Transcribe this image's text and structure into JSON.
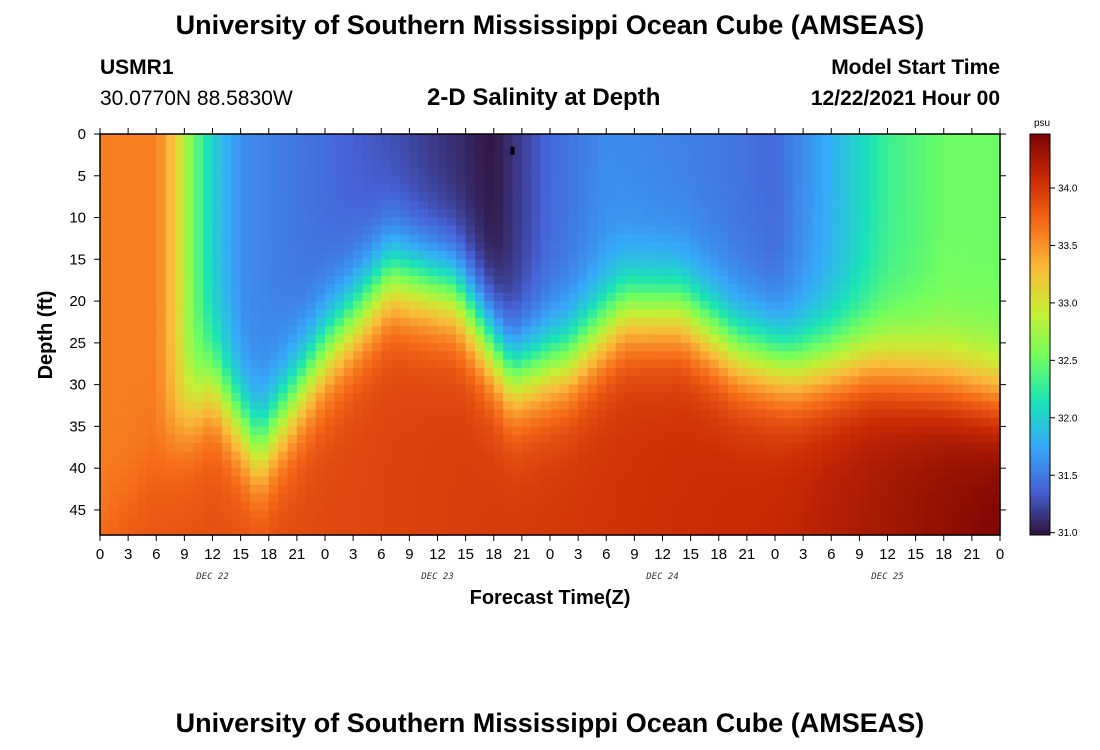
{
  "header": {
    "title": "University of Southern Mississippi Ocean Cube (AMSEAS)",
    "station_id": "USMR1",
    "location": "30.0770N  88.5830W",
    "subtitle": "2-D Salinity at Depth",
    "model_start_label": "Model Start Time",
    "model_start_value": "12/22/2021 Hour 00"
  },
  "footer": {
    "title": "University of Southern Mississippi Ocean Cube (AMSEAS)"
  },
  "colors": {
    "colormap": [
      "#30123b",
      "#4662d7",
      "#36aaf9",
      "#1ae4b6",
      "#72fe5e",
      "#c8ef34",
      "#faba39",
      "#f66b19",
      "#ca2a04",
      "#7a0403"
    ]
  },
  "chart_data": {
    "type": "heatmap",
    "title": "2-D Salinity at Depth",
    "xlabel": "Forecast Time(Z)",
    "ylabel": "Depth (ft)",
    "x_range_hours": [
      0,
      96
    ],
    "x_tick_step_hours": 3,
    "x_tick_labels": [
      "0",
      "3",
      "6",
      "9",
      "12",
      "15",
      "18",
      "21",
      "0",
      "3",
      "6",
      "9",
      "12",
      "15",
      "18",
      "21",
      "0",
      "3",
      "6",
      "9",
      "12",
      "15",
      "18",
      "21",
      "0",
      "3",
      "6",
      "9",
      "12",
      "15",
      "18",
      "21",
      "0"
    ],
    "day_labels": [
      {
        "text": "DEC 22",
        "hour": 12
      },
      {
        "text": "DEC 23",
        "hour": 36
      },
      {
        "text": "DEC 24",
        "hour": 60
      },
      {
        "text": "DEC 25",
        "hour": 84
      }
    ],
    "y_range_ft": [
      0,
      48
    ],
    "y_ticks": [
      0,
      5,
      10,
      15,
      20,
      25,
      30,
      35,
      40,
      45
    ],
    "colorbar": {
      "unit": "psu",
      "range": [
        30.98,
        34.47
      ],
      "ticks": [
        "31.0",
        "31.5",
        "32.0",
        "32.5",
        "33.0",
        "33.5",
        "34.0"
      ]
    },
    "surface_salinity_psu": [
      {
        "hour": 0,
        "value": 33.6
      },
      {
        "hour": 6,
        "value": 33.6
      },
      {
        "hour": 8,
        "value": 33.2
      },
      {
        "hour": 10,
        "value": 32.5
      },
      {
        "hour": 12,
        "value": 32.0
      },
      {
        "hour": 15,
        "value": 31.6
      },
      {
        "hour": 30,
        "value": 31.3
      },
      {
        "hour": 42,
        "value": 31.0
      },
      {
        "hour": 48,
        "value": 31.4
      },
      {
        "hour": 54,
        "value": 31.6
      },
      {
        "hour": 66,
        "value": 31.5
      },
      {
        "hour": 72,
        "value": 31.4
      },
      {
        "hour": 78,
        "value": 31.8
      },
      {
        "hour": 84,
        "value": 32.3
      },
      {
        "hour": 90,
        "value": 32.5
      },
      {
        "hour": 96,
        "value": 32.5
      }
    ],
    "halocline_depth_ft": [
      {
        "hour": 0,
        "value": 48
      },
      {
        "hour": 12,
        "value": 30
      },
      {
        "hour": 17,
        "value": 38
      },
      {
        "hour": 24,
        "value": 26
      },
      {
        "hour": 31,
        "value": 17
      },
      {
        "hour": 38,
        "value": 19
      },
      {
        "hour": 44,
        "value": 29
      },
      {
        "hour": 50,
        "value": 27
      },
      {
        "hour": 56,
        "value": 21
      },
      {
        "hour": 62,
        "value": 21
      },
      {
        "hour": 68,
        "value": 26
      },
      {
        "hour": 74,
        "value": 28
      },
      {
        "hour": 82,
        "value": 27
      },
      {
        "hour": 90,
        "value": 29
      },
      {
        "hour": 96,
        "value": 31
      }
    ],
    "bottom_salinity_psu": [
      {
        "hour": 0,
        "value": 33.8
      },
      {
        "hour": 48,
        "value": 34.0
      },
      {
        "hour": 72,
        "value": 34.1
      },
      {
        "hour": 96,
        "value": 34.45
      }
    ],
    "min_marker": {
      "hour": 44,
      "depth_ft": 2
    }
  }
}
